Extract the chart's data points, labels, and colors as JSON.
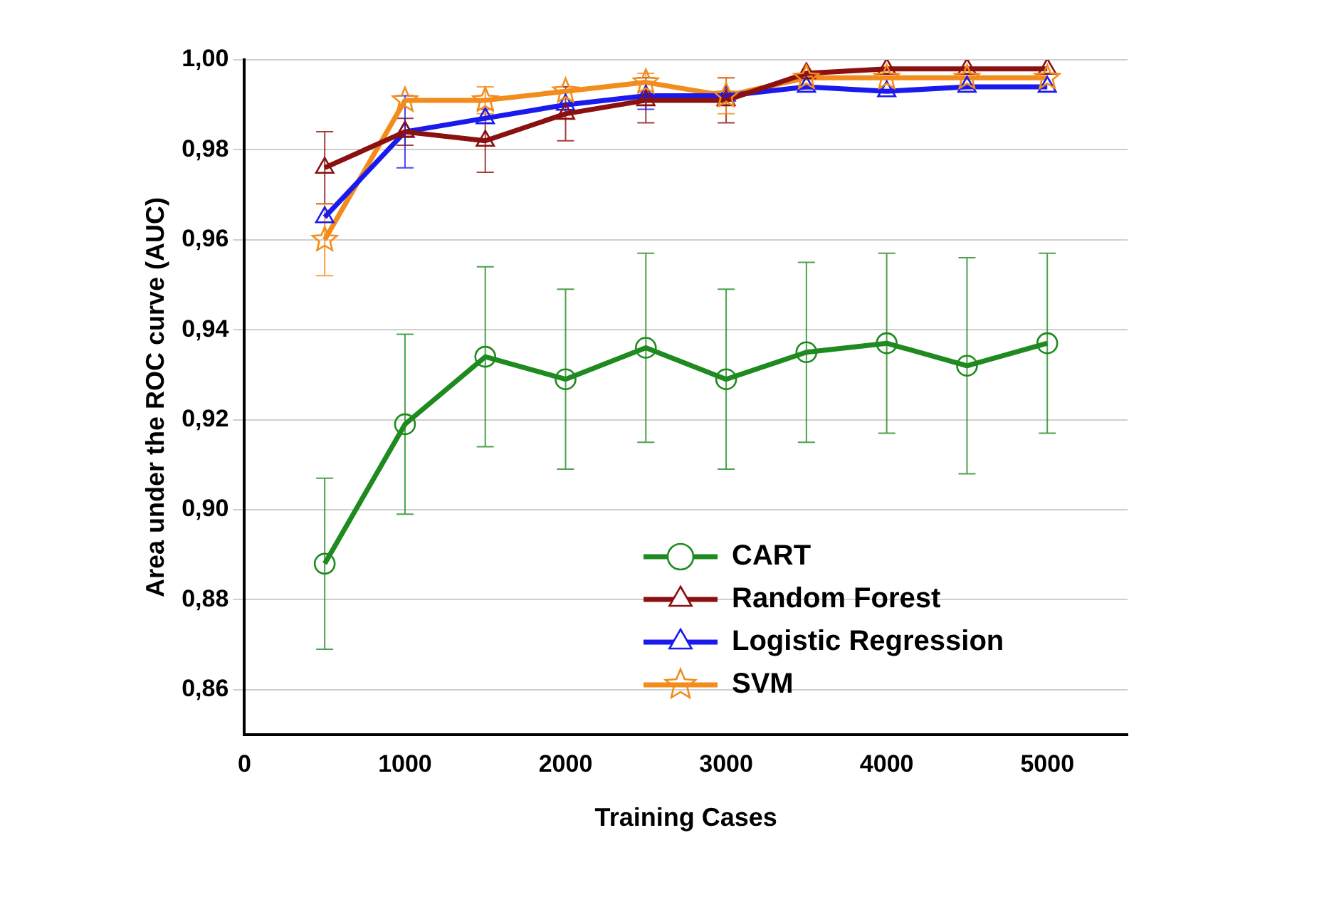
{
  "chart_data": {
    "type": "line",
    "xlabel": "Training Cases",
    "ylabel": "Area under the ROC curve (AUC)",
    "x": [
      500,
      1000,
      1500,
      2000,
      2500,
      3000,
      3500,
      4000,
      4500,
      5000
    ],
    "xlim": [
      0,
      5500
    ],
    "xticks": [
      0,
      1000,
      2000,
      3000,
      4000,
      5000
    ],
    "ylim": [
      0.85,
      1.0
    ],
    "yticks": [
      {
        "value": 0.86,
        "label": "0,86"
      },
      {
        "value": 0.88,
        "label": "0,88"
      },
      {
        "value": 0.9,
        "label": "0,90"
      },
      {
        "value": 0.92,
        "label": "0,92"
      },
      {
        "value": 0.94,
        "label": "0,94"
      },
      {
        "value": 0.96,
        "label": "0,96"
      },
      {
        "value": 0.98,
        "label": "0,98"
      },
      {
        "value": 1.0,
        "label": "1,00"
      }
    ],
    "grid": "y",
    "legend": "bottom right",
    "line_style": "solid",
    "series": [
      {
        "name": "CART",
        "color": "#1f8a1f",
        "marker": "circle",
        "values": [
          0.888,
          0.919,
          0.934,
          0.929,
          0.936,
          0.929,
          0.935,
          0.937,
          0.932,
          0.937
        ],
        "errors": [
          0.019,
          0.02,
          0.02,
          0.02,
          0.021,
          0.02,
          0.02,
          0.02,
          0.024,
          0.02
        ]
      },
      {
        "name": "Random Forest",
        "color": "#8b1010",
        "marker": "triangle",
        "values": [
          0.976,
          0.984,
          0.982,
          0.988,
          0.991,
          0.991,
          0.997,
          0.998,
          0.998,
          0.998
        ],
        "errors": [
          0.008,
          0.003,
          0.007,
          0.006,
          0.005,
          0.005,
          null,
          null,
          null,
          null
        ]
      },
      {
        "name": "Logistic Regression",
        "color": "#1a1aee",
        "marker": "triangle",
        "values": [
          0.965,
          0.984,
          0.987,
          0.99,
          0.992,
          0.992,
          0.994,
          0.993,
          0.994,
          0.994
        ],
        "errors": [
          null,
          0.008,
          null,
          null,
          0.003,
          null,
          null,
          null,
          null,
          null
        ]
      },
      {
        "name": "SVM",
        "color": "#f28c1c",
        "marker": "star",
        "values": [
          0.96,
          0.991,
          0.991,
          0.993,
          0.995,
          0.992,
          0.996,
          0.996,
          0.996,
          0.996
        ],
        "errors": [
          0.008,
          null,
          0.003,
          null,
          0.002,
          0.004,
          null,
          null,
          null,
          null
        ]
      }
    ]
  }
}
